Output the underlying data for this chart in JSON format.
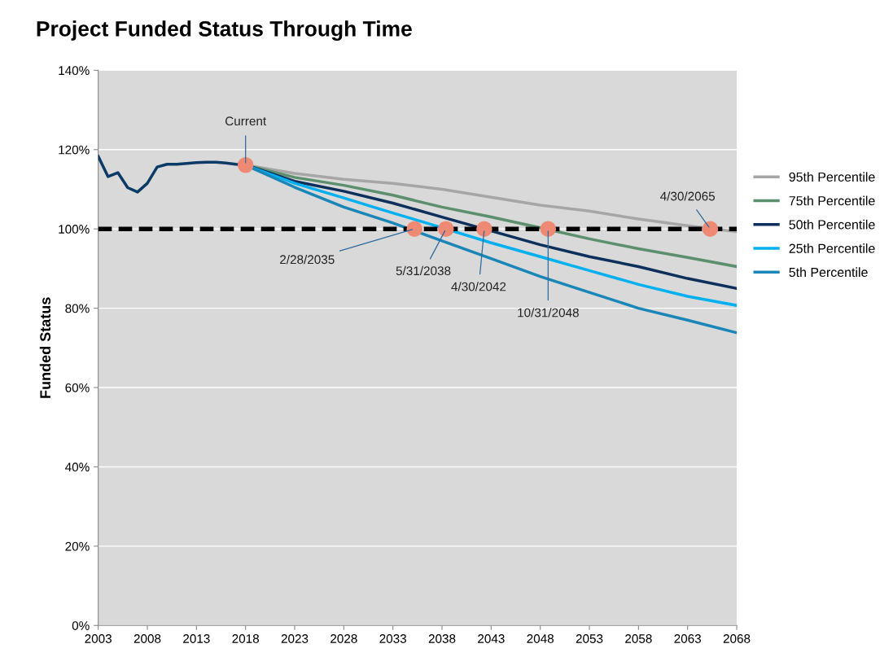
{
  "chart_data": {
    "type": "line",
    "title": "Project Funded Status Through Time",
    "ylabel": "Funded Status",
    "xlim": [
      2003,
      2068
    ],
    "xticks": [
      2003,
      2008,
      2013,
      2018,
      2023,
      2028,
      2033,
      2038,
      2043,
      2048,
      2053,
      2058,
      2063,
      2068
    ],
    "ylim": [
      0,
      140
    ],
    "yticks": [
      {
        "value": 0,
        "label": "0%"
      },
      {
        "value": 20,
        "label": "20%"
      },
      {
        "value": 40,
        "label": "40%"
      },
      {
        "value": 60,
        "label": "60%"
      },
      {
        "value": 80,
        "label": "80%"
      },
      {
        "value": 100,
        "label": "100%"
      },
      {
        "value": 120,
        "label": "120%"
      },
      {
        "value": 140,
        "label": "140%"
      }
    ],
    "grid": "y",
    "legend": "right",
    "marker": "none",
    "line_style": "solid",
    "series": [
      {
        "color": "#0b3a66",
        "x": [
          2003,
          2004,
          2005,
          2006,
          2007,
          2008,
          2009,
          2010,
          2011,
          2012,
          2013,
          2014,
          2015,
          2016,
          2017,
          2018
        ],
        "values": [
          118.3,
          113.2,
          114.2,
          110.4,
          109.3,
          111.5,
          115.6,
          116.3,
          116.3,
          116.5,
          116.7,
          116.8,
          116.8,
          116.6,
          116.3,
          116.1
        ]
      },
      {
        "name": "95th Percentile",
        "color": "#a6a6a6",
        "x": [
          2018,
          2023,
          2028,
          2033,
          2038,
          2043,
          2048,
          2053,
          2058,
          2063,
          2068
        ],
        "values": [
          116.1,
          114,
          112.5,
          111.5,
          110,
          108,
          106,
          104.5,
          102.5,
          100.8,
          99.3
        ]
      },
      {
        "name": "75th Percentile",
        "color": "#5b8f6e",
        "x": [
          2018,
          2023,
          2028,
          2033,
          2038,
          2043,
          2048,
          2053,
          2058,
          2063,
          2068
        ],
        "values": [
          116.1,
          113,
          111,
          108.5,
          105.5,
          103,
          100.3,
          97.5,
          95,
          92.8,
          90.5
        ]
      },
      {
        "name": "50th Percentile",
        "color": "#0c2f5c",
        "x": [
          2018,
          2023,
          2028,
          2033,
          2038,
          2043,
          2048,
          2053,
          2058,
          2063,
          2068
        ],
        "values": [
          116.1,
          112,
          109.5,
          106.5,
          103,
          99.5,
          96,
          93,
          90.5,
          87.5,
          85
        ]
      },
      {
        "name": "25th Percentile",
        "color": "#00b0f0",
        "x": [
          2018,
          2023,
          2028,
          2033,
          2036,
          2043,
          2048,
          2053,
          2058,
          2063,
          2068
        ],
        "values": [
          116.1,
          111.5,
          107.8,
          104,
          101.8,
          96.5,
          93,
          89.5,
          86,
          83,
          80.7
        ]
      },
      {
        "name": "5th Percentile",
        "color": "#1a86b8",
        "x": [
          2018,
          2023,
          2028,
          2033,
          2038,
          2043,
          2048,
          2053,
          2058,
          2063,
          2068
        ],
        "values": [
          116.1,
          110.5,
          105.5,
          101.5,
          97,
          92.5,
          88,
          84,
          80,
          77,
          73.8
        ]
      },
      {
        "type": "scatter",
        "marker": "circle",
        "color": "#ee8a74",
        "x": [
          2018,
          2035.2,
          2038.4,
          2042.3,
          2048.8,
          2065.3
        ],
        "values": [
          116.1,
          100,
          100,
          100,
          100,
          100
        ]
      }
    ],
    "ref_lines": [
      {
        "axis": "y",
        "value": 100,
        "color": "#000000",
        "line_style": "dashed"
      }
    ],
    "annotations": [
      {
        "text": "Current",
        "x": 2018,
        "y": 116.1
      },
      {
        "text": "2/28/2035",
        "x": 2035.2,
        "y": 100
      },
      {
        "text": "5/31/2038",
        "x": 2038.4,
        "y": 100
      },
      {
        "text": "4/30/2042",
        "x": 2042.3,
        "y": 100
      },
      {
        "text": "10/31/2048",
        "x": 2048.8,
        "y": 100
      },
      {
        "text": "4/30/2065",
        "x": 2065.3,
        "y": 100
      }
    ]
  }
}
